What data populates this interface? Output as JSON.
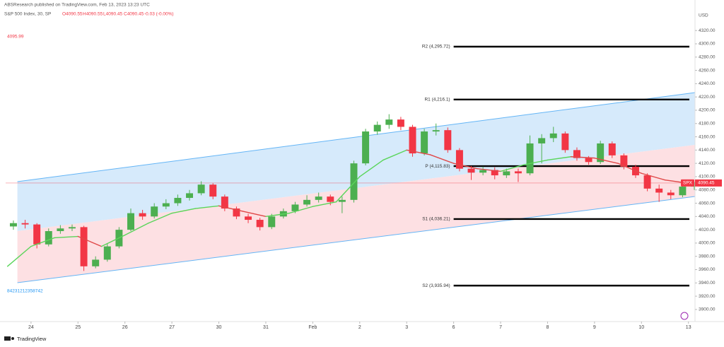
{
  "header": {
    "publisher": "ABSResearch published on TradingView.com, Feb 13, 2023 13:23 UTC",
    "symbol": "S&P 500 Index, 30, SP",
    "open": "O4090.55",
    "high": "H4090.55",
    "low": "L4090.45",
    "close": "C4090.45",
    "change": "-0.03 (-0.00%)",
    "marker": "4095.99",
    "id_text": "84231212358742",
    "footer": "TradingView"
  },
  "chart_data": {
    "type": "candlestick",
    "currency": "USD",
    "symbol_tag": "SPX",
    "last_price": 4090.45,
    "last_price_color": "#f23645",
    "up_color": "#4caf50",
    "down_color": "#f23645",
    "xlim": [
      -0.54,
      14.14
    ],
    "xticks": [
      {
        "value": 0,
        "label": "24"
      },
      {
        "value": 1,
        "label": "25"
      },
      {
        "value": 2,
        "label": "26"
      },
      {
        "value": 3,
        "label": "27"
      },
      {
        "value": 4,
        "label": "30"
      },
      {
        "value": 5,
        "label": "31"
      },
      {
        "value": 6,
        "label": "Feb"
      },
      {
        "value": 7,
        "label": "2"
      },
      {
        "value": 8,
        "label": "3"
      },
      {
        "value": 9,
        "label": "6"
      },
      {
        "value": 10,
        "label": "7"
      },
      {
        "value": 11,
        "label": "8"
      },
      {
        "value": 12,
        "label": "9"
      },
      {
        "value": 13,
        "label": "10"
      },
      {
        "value": 14,
        "label": "13"
      }
    ],
    "ylim": [
      3885,
      4350
    ],
    "yticks": [
      {
        "value": 3900,
        "label": "3900.00"
      },
      {
        "value": 3920,
        "label": "3920.00"
      },
      {
        "value": 3940,
        "label": "3940.00"
      },
      {
        "value": 3960,
        "label": "3960.00"
      },
      {
        "value": 3980,
        "label": "3980.00"
      },
      {
        "value": 4000,
        "label": "4000.00"
      },
      {
        "value": 4020,
        "label": "4020.00"
      },
      {
        "value": 4040,
        "label": "4040.00"
      },
      {
        "value": 4060,
        "label": "4060.00"
      },
      {
        "value": 4080,
        "label": "4080.00"
      },
      {
        "value": 4100,
        "label": "4100.00"
      },
      {
        "value": 4120,
        "label": "4120.00"
      },
      {
        "value": 4140,
        "label": "4140.00"
      },
      {
        "value": 4160,
        "label": "4160.00"
      },
      {
        "value": 4180,
        "label": "4180.00"
      },
      {
        "value": 4200,
        "label": "4200.00"
      },
      {
        "value": 4220,
        "label": "4220.00"
      },
      {
        "value": 4240,
        "label": "4240.00"
      },
      {
        "value": 4260,
        "label": "4260.00"
      },
      {
        "value": 4280,
        "label": "4280.00"
      },
      {
        "value": 4300,
        "label": "4300.00"
      },
      {
        "value": 4320,
        "label": "4320.00"
      }
    ],
    "channel": {
      "x": [
        -0.29,
        14.14
      ],
      "upper": [
        4092.5,
        4226.6
      ],
      "middle": [
        4018,
        4147.8
      ],
      "lower": [
        3940.3,
        4070.1
      ],
      "line_color": "#64b5f6",
      "upper_fill": "#d6eafb",
      "lower_fill": "#fde0e3"
    },
    "pivots": [
      {
        "label": "R2 (4,295.72)",
        "value": 4295.72
      },
      {
        "label": "R1 (4,216.1)",
        "value": 4216.1
      },
      {
        "label": "P (4,115.83)",
        "value": 4115.83
      },
      {
        "label": "S1 (4,036.21)",
        "value": 4036.21
      },
      {
        "label": "S2 (3,935.94)",
        "value": 3935.94
      }
    ],
    "pivot_x": [
      9,
      14.02
    ],
    "ma": {
      "up_color": "#5ad55a",
      "down_color": "#e04848",
      "x": [
        -0.5,
        0,
        0.5,
        1,
        1.5,
        2,
        2.5,
        3,
        3.5,
        4,
        4.5,
        5,
        5.5,
        6,
        6.5,
        7,
        7.5,
        8,
        8.5,
        9,
        9.5,
        10,
        10.5,
        11,
        11.5,
        12,
        12.5,
        13,
        13.5,
        14
      ],
      "values": [
        3965,
        3995,
        4008,
        4010,
        3995,
        4012,
        4030,
        4045,
        4052,
        4056,
        4048,
        4040,
        4045,
        4055,
        4062,
        4100,
        4125,
        4140,
        4133,
        4120,
        4112,
        4108,
        4118,
        4125,
        4130,
        4128,
        4120,
        4105,
        4095,
        4090
      ]
    },
    "candles": {
      "x": [
        -0.375,
        -0.125,
        0.125,
        0.375,
        0.625,
        0.875,
        1.125,
        1.375,
        1.625,
        1.875,
        2.125,
        2.375,
        2.625,
        2.875,
        3.125,
        3.375,
        3.625,
        3.875,
        4.125,
        4.375,
        4.625,
        4.875,
        5.125,
        5.375,
        5.625,
        5.875,
        6.125,
        6.375,
        6.625,
        6.875,
        7.125,
        7.375,
        7.625,
        7.875,
        8.125,
        8.375,
        8.625,
        8.875,
        9.125,
        9.375,
        9.625,
        9.875,
        10.125,
        10.375,
        10.625,
        10.875,
        11.125,
        11.375,
        11.625,
        11.875,
        12.125,
        12.375,
        12.625,
        12.875,
        13.125,
        13.375,
        13.625,
        13.875,
        14.125
      ],
      "open": [
        4025,
        4030,
        4028,
        3998,
        4018,
        4022,
        4024,
        3965,
        3975,
        3995,
        4020,
        4045,
        4040,
        4055,
        4060,
        4068,
        4075,
        4088,
        4070,
        4052,
        4040,
        4035,
        4024,
        4040,
        4048,
        4058,
        4065,
        4070,
        4062,
        4065,
        4120,
        4168,
        4178,
        4186,
        4175,
        4135,
        4168,
        4170,
        4140,
        4112,
        4106,
        4110,
        4102,
        4108,
        4105,
        4150,
        4158,
        4165,
        4140,
        4128,
        4122,
        4150,
        4132,
        4115,
        4102,
        4082,
        4076,
        4072,
        4085
      ],
      "high": [
        4034,
        4035,
        4030,
        4022,
        4027,
        4028,
        4026,
        3980,
        3999,
        4024,
        4052,
        4050,
        4060,
        4066,
        4073,
        4080,
        4093,
        4090,
        4073,
        4055,
        4044,
        4038,
        4044,
        4052,
        4062,
        4072,
        4076,
        4073,
        4070,
        4124,
        4172,
        4183,
        4194,
        4190,
        4178,
        4172,
        4180,
        4174,
        4143,
        4116,
        4115,
        4114,
        4112,
        4112,
        4162,
        4164,
        4175,
        4168,
        4144,
        4131,
        4154,
        4153,
        4135,
        4118,
        4105,
        4088,
        4080,
        4089,
        4092
      ],
      "low": [
        4020,
        4022,
        3992,
        3995,
        4014,
        4018,
        3958,
        3962,
        3972,
        3992,
        4018,
        4035,
        4037,
        4051,
        4056,
        4064,
        4072,
        4066,
        4048,
        4036,
        4030,
        4019,
        4021,
        4037,
        4045,
        4055,
        4061,
        4057,
        4045,
        4061,
        4117,
        4163,
        4172,
        4170,
        4130,
        4132,
        4162,
        4136,
        4108,
        4095,
        4102,
        4096,
        4098,
        4092,
        4102,
        4120,
        4152,
        4136,
        4124,
        4118,
        4119,
        4128,
        4111,
        4098,
        4078,
        4062,
        4066,
        4069,
        4080
      ],
      "close": [
        4030,
        4028,
        3998,
        4018,
        4022,
        4024,
        3965,
        3975,
        3995,
        4020,
        4045,
        4040,
        4055,
        4060,
        4068,
        4075,
        4088,
        4070,
        4052,
        4040,
        4035,
        4024,
        4040,
        4048,
        4058,
        4065,
        4070,
        4062,
        4065,
        4120,
        4168,
        4178,
        4186,
        4175,
        4135,
        4168,
        4170,
        4140,
        4112,
        4106,
        4110,
        4102,
        4108,
        4105,
        4150,
        4158,
        4165,
        4140,
        4128,
        4122,
        4150,
        4132,
        4115,
        4102,
        4082,
        4076,
        4072,
        4085,
        4090.45
      ]
    }
  }
}
